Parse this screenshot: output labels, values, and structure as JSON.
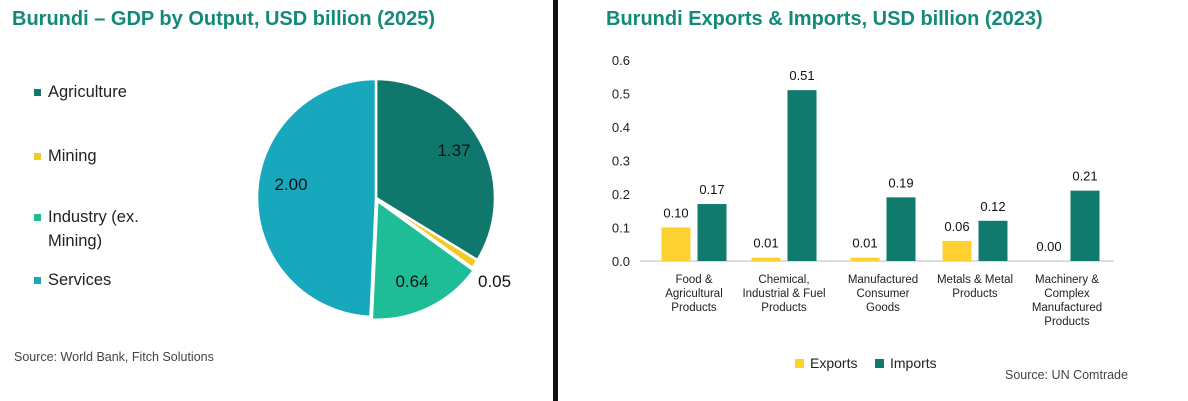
{
  "colors": {
    "agriculture": "#10776c",
    "mining": "#f5c924",
    "industry": "#1ebd98",
    "services": "#17a8bd",
    "exports": "#fcd130",
    "imports": "#107a6c",
    "title": "#138a78"
  },
  "chart_data": [
    {
      "type": "pie",
      "title": "Burundi – GDP by Output, USD billion (2025)",
      "slices": [
        {
          "label": "Agriculture",
          "value": 1.37,
          "value_label": "1.37",
          "color": "#10776c"
        },
        {
          "label": "Mining",
          "value": 0.05,
          "value_label": "0.05",
          "color": "#f5c924"
        },
        {
          "label": "Industry (ex. Mining)",
          "label_lines": [
            "Industry (ex.",
            "Mining)"
          ],
          "value": 0.64,
          "value_label": "0.64",
          "color": "#1ebd98"
        },
        {
          "label": "Services",
          "value": 2.0,
          "value_label": "2.00",
          "color": "#17a8bd"
        }
      ],
      "legend_position": "left",
      "source": "Source: World Bank, Fitch Solutions"
    },
    {
      "type": "bar",
      "title": "Burundi Exports & Imports, USD billion (2023)",
      "categories": [
        [
          "Food &",
          "Agricultural",
          "Products"
        ],
        [
          "Chemical,",
          "Industrial & Fuel",
          "Products"
        ],
        [
          "Manufactured",
          "Consumer",
          "Goods"
        ],
        [
          "Metals & Metal",
          "Products"
        ],
        [
          "Machinery &",
          "Complex",
          "Manufactured",
          "Products"
        ]
      ],
      "series": [
        {
          "name": "Exports",
          "values": [
            0.1,
            0.01,
            0.01,
            0.06,
            0.0
          ],
          "labels": [
            "0.10",
            "0.01",
            "0.01",
            "0.06",
            "0.00"
          ],
          "color": "#fcd130"
        },
        {
          "name": "Imports",
          "values": [
            0.17,
            0.51,
            0.19,
            0.12,
            0.21
          ],
          "labels": [
            "0.17",
            "0.51",
            "0.19",
            "0.12",
            "0.21"
          ],
          "color": "#107a6c"
        }
      ],
      "ylim": [
        0,
        0.6
      ],
      "yticks": [
        "0.0",
        "0.1",
        "0.2",
        "0.3",
        "0.4",
        "0.5",
        "0.6"
      ],
      "grid": false,
      "legend_position": "bottom",
      "source": "Source: UN Comtrade"
    }
  ]
}
